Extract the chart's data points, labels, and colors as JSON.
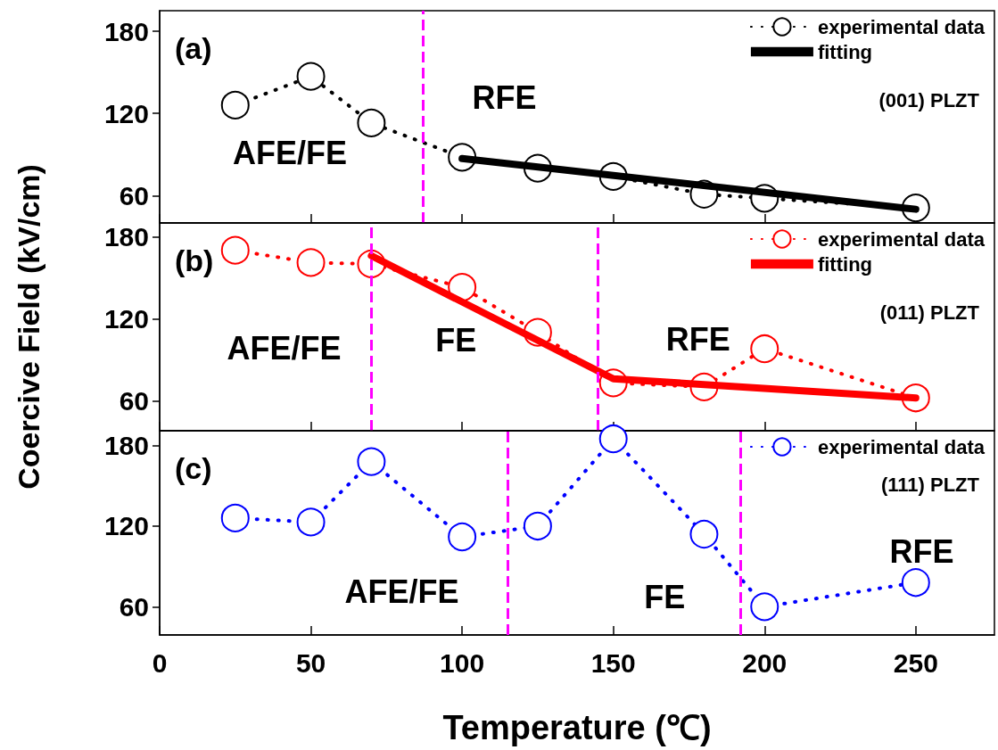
{
  "chart_data": [
    {
      "type": "line",
      "title": "(a)",
      "subtitle": "(001) PLZT",
      "x": [
        25,
        50,
        70,
        100,
        125,
        150,
        180,
        200,
        250
      ],
      "xlim": [
        0,
        276
      ],
      "xticks": [
        0,
        50,
        100,
        150,
        200,
        250
      ],
      "ylim": [
        40,
        195
      ],
      "yticks": [
        60,
        120,
        180
      ],
      "tick_labels": "y",
      "grid": false,
      "legend": "top right",
      "marker": "circle",
      "series": [
        {
          "name": "experimental data",
          "color": "#000000",
          "line_style": "dotted",
          "values": [
            126,
            147,
            113,
            88,
            80,
            74,
            61,
            58,
            51
          ]
        },
        {
          "name": "fitting",
          "color": "#000000",
          "line_style": "solid",
          "marker": "none",
          "x": [
            100,
            250
          ],
          "values": [
            87,
            50
          ]
        }
      ],
      "ref_lines": [
        {
          "axis": "x",
          "value": 87,
          "color": "#ff00ff",
          "line_style": "dashed"
        }
      ],
      "annotations": [
        "AFE/FE",
        "RFE"
      ]
    },
    {
      "type": "line",
      "title": "(b)",
      "subtitle": "(011) PLZT",
      "ylabel": "Coercive Field (kV/cm)",
      "x": [
        25,
        50,
        70,
        100,
        125,
        150,
        180,
        200,
        250
      ],
      "xlim": [
        0,
        276
      ],
      "xticks": [
        0,
        50,
        100,
        150,
        200,
        250
      ],
      "ylim": [
        38,
        190
      ],
      "yticks": [
        60,
        120,
        180
      ],
      "tick_labels": "y",
      "grid": false,
      "legend": "top right",
      "marker": "circle",
      "series": [
        {
          "name": "experimental data",
          "color": "#ff0000",
          "line_style": "dotted",
          "values": [
            170,
            161,
            160,
            143,
            110,
            73,
            70,
            98,
            62
          ]
        },
        {
          "name": "fitting",
          "color": "#ff0000",
          "line_style": "solid",
          "marker": "none",
          "x": [
            70,
            150,
            250
          ],
          "values": [
            166,
            76,
            62
          ]
        }
      ],
      "ref_lines": [
        {
          "axis": "x",
          "value": 70,
          "color": "#ff00ff",
          "line_style": "dashed"
        },
        {
          "axis": "x",
          "value": 145,
          "color": "#ff00ff",
          "line_style": "dashed"
        }
      ],
      "annotations": [
        "AFE/FE",
        "FE",
        "RFE"
      ]
    },
    {
      "type": "line",
      "title": "(c)",
      "subtitle": "(111) PLZT",
      "xlabel": "Temperature (℃)",
      "x": [
        25,
        50,
        70,
        100,
        125,
        150,
        180,
        200,
        250
      ],
      "xlim": [
        0,
        276
      ],
      "xticks": [
        0,
        50,
        100,
        150,
        200,
        250
      ],
      "ylim": [
        39,
        191
      ],
      "yticks": [
        60,
        120,
        180
      ],
      "grid": false,
      "legend": "top right",
      "marker": "circle",
      "series": [
        {
          "name": "experimental data",
          "color": "#0000ff",
          "line_style": "dotted",
          "values": [
            126,
            123,
            168,
            112,
            120,
            185,
            114,
            60,
            78
          ]
        }
      ],
      "ref_lines": [
        {
          "axis": "x",
          "value": 115,
          "color": "#ff00ff",
          "line_style": "dashed"
        },
        {
          "axis": "x",
          "value": 192,
          "color": "#ff00ff",
          "line_style": "dashed"
        }
      ],
      "annotations": [
        "AFE/FE",
        "FE",
        "RFE"
      ]
    }
  ]
}
